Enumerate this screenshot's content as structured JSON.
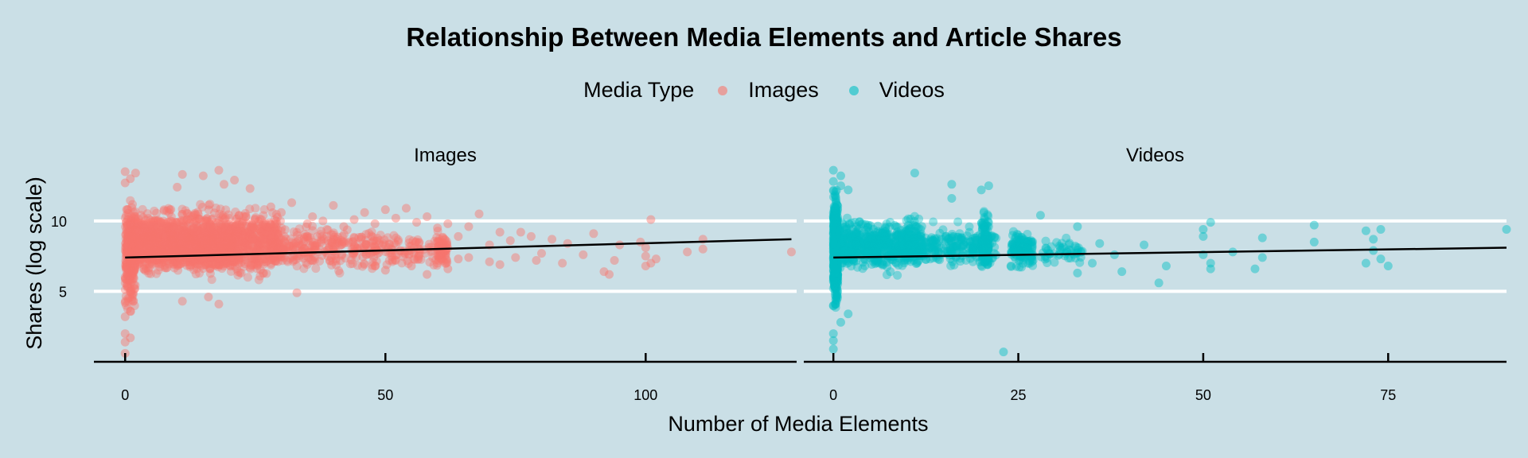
{
  "chart_data": {
    "type": "scatter",
    "title": "Relationship Between Media Elements and Article Shares",
    "xlabel": "Number of Media Elements",
    "ylabel": "Shares (log scale)",
    "legend": {
      "title": "Media Type",
      "position": "top",
      "entries": [
        "Images",
        "Videos"
      ]
    },
    "y_scale": "log",
    "ylim": [
      0,
      14
    ],
    "y_ticks": [
      5,
      10
    ],
    "grid": "horizontal major only",
    "panels": [
      {
        "name": "Images",
        "color": "#f8766d",
        "xlim": [
          -6,
          129
        ],
        "x_ticks": [
          0,
          50,
          100
        ],
        "trend": {
          "x": [
            0,
            128
          ],
          "y": [
            7.4,
            8.7
          ]
        },
        "points": [
          [
            0,
            0.6
          ],
          [
            0,
            1.4
          ],
          [
            0,
            2.0
          ],
          [
            1,
            1.7
          ],
          [
            0,
            3.2
          ],
          [
            1,
            3.6
          ],
          [
            0,
            4.2
          ],
          [
            0,
            13.5
          ],
          [
            2,
            13.4
          ],
          [
            1,
            13.0
          ],
          [
            0,
            12.7
          ],
          [
            10,
            12.4
          ],
          [
            11,
            13.3
          ],
          [
            15,
            13.2
          ],
          [
            18,
            13.6
          ],
          [
            19,
            12.6
          ],
          [
            21,
            12.9
          ],
          [
            24,
            12.3
          ],
          [
            11,
            4.3
          ],
          [
            16,
            4.6
          ],
          [
            18,
            4.1
          ],
          [
            33,
            4.9
          ],
          [
            28,
            11.0
          ],
          [
            30,
            10.6
          ],
          [
            32,
            11.3
          ],
          [
            35,
            9.8
          ],
          [
            36,
            10.3
          ],
          [
            38,
            10.0
          ],
          [
            40,
            11.1
          ],
          [
            42,
            9.6
          ],
          [
            44,
            10.1
          ],
          [
            46,
            10.6
          ],
          [
            48,
            9.8
          ],
          [
            50,
            10.8
          ],
          [
            52,
            10.2
          ],
          [
            54,
            10.9
          ],
          [
            56,
            9.9
          ],
          [
            58,
            10.3
          ],
          [
            60,
            9.5
          ],
          [
            61,
            8.8
          ],
          [
            62,
            9.8
          ],
          [
            64,
            8.9
          ],
          [
            66,
            9.6
          ],
          [
            68,
            10.5
          ],
          [
            70,
            8.3
          ],
          [
            72,
            9.2
          ],
          [
            74,
            8.6
          ],
          [
            76,
            9.2
          ],
          [
            78,
            8.9
          ],
          [
            80,
            7.7
          ],
          [
            82,
            8.7
          ],
          [
            85,
            8.4
          ],
          [
            88,
            7.6
          ],
          [
            90,
            9.1
          ],
          [
            92,
            6.4
          ],
          [
            93,
            6.2
          ],
          [
            94,
            7.2
          ],
          [
            95,
            8.3
          ],
          [
            99,
            8.5
          ],
          [
            100,
            7.5
          ],
          [
            100,
            8.1
          ],
          [
            101,
            7.0
          ],
          [
            100,
            6.8
          ],
          [
            101,
            10.1
          ],
          [
            102,
            7.3
          ],
          [
            108,
            7.8
          ],
          [
            111,
            8.0
          ],
          [
            111,
            8.7
          ],
          [
            128,
            7.8
          ],
          [
            48,
            6.8
          ],
          [
            50,
            6.5
          ],
          [
            52,
            7.2
          ],
          [
            55,
            6.8
          ],
          [
            58,
            6.2
          ],
          [
            60,
            7.0
          ],
          [
            62,
            6.6
          ],
          [
            64,
            7.3
          ],
          [
            66,
            7.4
          ],
          [
            70,
            7.1
          ],
          [
            72,
            6.9
          ],
          [
            75,
            7.4
          ],
          [
            79,
            7.2
          ],
          [
            84,
            7.0
          ]
        ],
        "clusters": [
          {
            "x": [
              0,
              2
            ],
            "y": [
              2.8,
              12.4
            ],
            "n": 280
          },
          {
            "x": [
              1,
              30
            ],
            "y": [
              5.4,
              11.6
            ],
            "n": 1100
          },
          {
            "x": [
              2,
              22
            ],
            "y": [
              6.0,
              10.6
            ],
            "n": 700
          },
          {
            "x": [
              28,
              48
            ],
            "y": [
              6.0,
              10.2
            ],
            "n": 260
          },
          {
            "x": [
              48,
              62
            ],
            "y": [
              6.2,
              9.6
            ],
            "n": 110
          },
          {
            "x": [
              60,
              62
            ],
            "y": [
              6.5,
              9.4
            ],
            "n": 50
          }
        ]
      },
      {
        "name": "Videos",
        "color": "#00bfc4",
        "xlim": [
          -4,
          91
        ],
        "x_ticks": [
          0,
          25,
          50,
          75
        ],
        "trend": {
          "x": [
            0,
            91
          ],
          "y": [
            7.4,
            8.1
          ]
        },
        "points": [
          [
            0,
            0.9
          ],
          [
            0,
            1.5
          ],
          [
            0,
            2.0
          ],
          [
            1,
            2.8
          ],
          [
            2,
            3.4
          ],
          [
            0,
            4.0
          ],
          [
            0,
            13.6
          ],
          [
            1,
            13.2
          ],
          [
            0,
            12.8
          ],
          [
            1,
            12.5
          ],
          [
            2,
            12.2
          ],
          [
            11,
            13.4
          ],
          [
            16,
            12.6
          ],
          [
            20,
            12.2
          ],
          [
            21,
            12.5
          ],
          [
            16,
            11.6
          ],
          [
            23,
            0.7
          ],
          [
            28,
            10.4
          ],
          [
            33,
            9.6
          ],
          [
            36,
            8.4
          ],
          [
            38,
            7.6
          ],
          [
            39,
            6.4
          ],
          [
            42,
            8.3
          ],
          [
            45,
            6.8
          ],
          [
            50,
            7.6
          ],
          [
            50,
            8.9
          ],
          [
            50,
            9.4
          ],
          [
            51,
            9.9
          ],
          [
            51,
            6.6
          ],
          [
            51,
            7.0
          ],
          [
            54,
            7.8
          ],
          [
            58,
            8.8
          ],
          [
            58,
            7.4
          ],
          [
            65,
            9.7
          ],
          [
            65,
            8.5
          ],
          [
            72,
            9.3
          ],
          [
            73,
            8.7
          ],
          [
            73,
            7.9
          ],
          [
            74,
            7.3
          ],
          [
            75,
            6.8
          ],
          [
            72,
            7.0
          ],
          [
            74,
            9.4
          ],
          [
            57,
            6.6
          ],
          [
            91,
            9.4
          ],
          [
            44,
            5.6
          ],
          [
            26,
            7.5
          ],
          [
            24,
            6.8
          ],
          [
            27,
            7.2
          ],
          [
            33,
            6.3
          ],
          [
            35,
            7.0
          ]
        ],
        "clusters": [
          {
            "x": [
              0,
              0.6
            ],
            "y": [
              3.2,
              12.8
            ],
            "n": 600
          },
          {
            "x": [
              0.8,
              12
            ],
            "y": [
              6.0,
              10.6
            ],
            "n": 600
          },
          {
            "x": [
              12,
              22
            ],
            "y": [
              6.3,
              10.0
            ],
            "n": 200
          },
          {
            "x": [
              20,
              21
            ],
            "y": [
              6.0,
              11.4
            ],
            "n": 120
          },
          {
            "x": [
              24,
              27
            ],
            "y": [
              6.3,
              9.8
            ],
            "n": 120
          },
          {
            "x": [
              28,
              34
            ],
            "y": [
              6.6,
              9.0
            ],
            "n": 50
          }
        ]
      }
    ]
  }
}
